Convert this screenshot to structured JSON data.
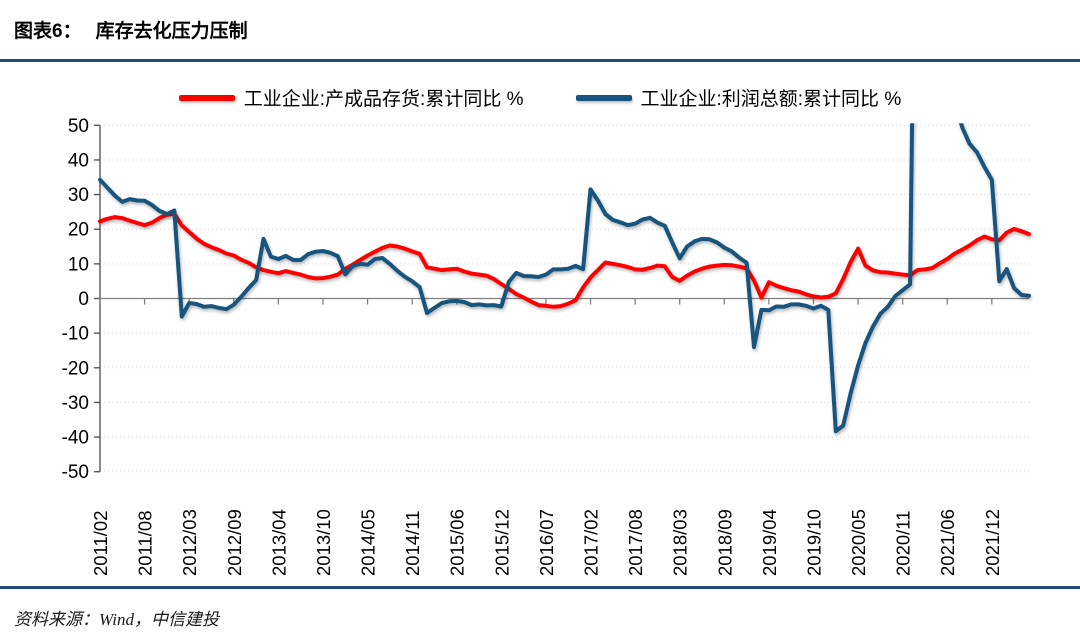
{
  "figure": {
    "label": "图表6：",
    "title": "库存去化压力压制"
  },
  "source": {
    "text": "资料来源：Wind，中信建投"
  },
  "colors": {
    "accent_blue": "#1F4E79",
    "series_red": "#FF0000",
    "series_blue": "#17547E",
    "zero_axis": "#808080",
    "axis": "#595959",
    "gridline": "#d9d9d9"
  },
  "chart_data": {
    "type": "line",
    "title": "库存去化压力压制",
    "xlabel": "",
    "ylabel": "",
    "ylim": [
      -50,
      50
    ],
    "y_ticks": [
      50,
      40,
      30,
      20,
      10,
      0,
      -10,
      -20,
      -30,
      -40,
      -50
    ],
    "grid": "dotted horizontal gridlines, solid gray axis at zero",
    "legend_position": "top center",
    "x_start": "2011/02",
    "x_end": "2022/06",
    "note": "monthly points, January skipped (Chinese cumulative YoY data); x tick labels every 6 points; 2021 blue values above 50 are clipped at plot top",
    "x_tick_every": 6,
    "x_tick_labels": [
      "2011/02",
      "2011/08",
      "2012/03",
      "2012/09",
      "2013/04",
      "2013/10",
      "2014/05",
      "2014/11",
      "2015/06",
      "2015/12",
      "2016/07",
      "2017/02",
      "2017/08",
      "2018/03",
      "2018/09",
      "2019/04",
      "2019/10",
      "2020/05",
      "2020/11",
      "2021/06",
      "2021/12"
    ],
    "series": [
      {
        "name": "工业企业:产成品存货:累计同比 %",
        "color": "#FF0000",
        "values": [
          22.3,
          23.0,
          23.5,
          23.2,
          22.5,
          21.8,
          21.2,
          21.9,
          23.2,
          24.2,
          24.5,
          21.1,
          19.2,
          17.3,
          15.8,
          14.8,
          14.0,
          13.0,
          12.4,
          11.2,
          10.3,
          9.0,
          8.2,
          7.7,
          7.3,
          7.9,
          7.4,
          6.9,
          6.2,
          5.8,
          5.9,
          6.3,
          6.9,
          8.6,
          9.8,
          11.1,
          12.4,
          13.5,
          14.6,
          15.3,
          15.0,
          14.4,
          13.6,
          12.9,
          9.0,
          8.6,
          8.2,
          8.4,
          8.6,
          7.8,
          7.2,
          6.9,
          6.6,
          5.6,
          4.2,
          2.8,
          1.3,
          0.3,
          -0.9,
          -1.9,
          -2.1,
          -2.4,
          -2.2,
          -1.5,
          -0.5,
          3.2,
          6.1,
          8.2,
          10.4,
          10.0,
          9.6,
          9.1,
          8.4,
          8.3,
          8.8,
          9.5,
          9.3,
          6.2,
          5.1,
          6.6,
          7.8,
          8.6,
          9.2,
          9.5,
          9.7,
          9.6,
          9.2,
          8.7,
          5.2,
          0.3,
          4.7,
          3.7,
          3.0,
          2.4,
          2.0,
          1.2,
          0.6,
          0.3,
          0.5,
          1.5,
          5.6,
          10.5,
          14.4,
          9.5,
          8.1,
          7.6,
          7.5,
          7.2,
          6.9,
          6.7,
          8.2,
          8.4,
          8.8,
          10.2,
          11.4,
          13.0,
          14.1,
          15.3,
          16.8,
          17.9,
          17.1,
          16.8,
          19.0,
          20.1,
          19.4,
          18.6
        ]
      },
      {
        "name": "工业企业:利润总额:累计同比 %",
        "color": "#17547E",
        "values": [
          34.3,
          32.0,
          29.7,
          27.9,
          28.7,
          28.3,
          28.2,
          27.0,
          25.3,
          24.4,
          25.4,
          -5.2,
          -1.3,
          -1.6,
          -2.4,
          -2.2,
          -2.7,
          -3.1,
          -1.8,
          0.5,
          3.0,
          5.3,
          17.2,
          12.1,
          11.4,
          12.3,
          11.1,
          11.1,
          12.8,
          13.5,
          13.7,
          13.2,
          12.2,
          7.0,
          9.4,
          10.0,
          9.8,
          11.4,
          11.7,
          10.0,
          8.0,
          6.3,
          5.0,
          3.3,
          -4.2,
          -2.7,
          -1.3,
          -0.8,
          -0.7,
          -1.0,
          -1.9,
          -1.7,
          -2.0,
          -1.9,
          -2.3,
          4.8,
          7.4,
          6.5,
          6.4,
          6.2,
          6.9,
          8.4,
          8.4,
          8.6,
          9.4,
          8.5,
          31.5,
          28.3,
          24.4,
          22.7,
          22.0,
          21.2,
          21.6,
          22.8,
          23.3,
          21.9,
          21.0,
          16.1,
          11.6,
          15.0,
          16.5,
          17.2,
          17.1,
          16.2,
          14.7,
          13.6,
          11.8,
          10.3,
          -14.0,
          -3.3,
          -3.4,
          -2.3,
          -2.4,
          -1.7,
          -1.7,
          -2.1,
          -2.9,
          -2.1,
          -3.3,
          -38.3,
          -36.7,
          -27.4,
          -19.3,
          -12.8,
          -8.1,
          -4.4,
          -2.4,
          0.7,
          2.4,
          4.1,
          178.9,
          137.3,
          106.1,
          83.4,
          66.9,
          57.3,
          49.5,
          44.7,
          42.2,
          38.0,
          34.3,
          5.0,
          8.5,
          3.0,
          1.0,
          0.8
        ]
      }
    ]
  }
}
